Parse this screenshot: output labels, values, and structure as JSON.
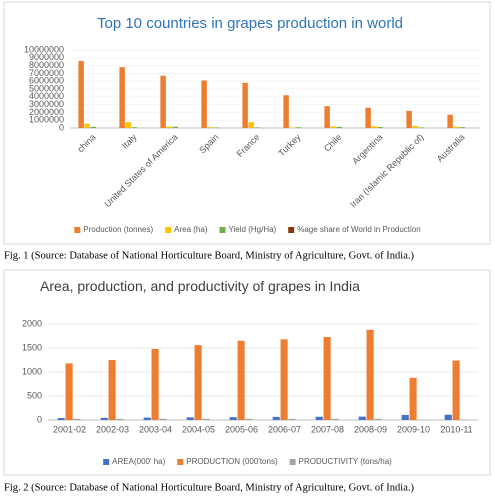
{
  "chart_data": [
    {
      "type": "bar",
      "title": "Top 10 countries  in grapes production in world",
      "caption": "Fig. 1 (Source: Database of National Horticulture Board, Ministry of Agriculture, Govt. of India.)",
      "categories": [
        "china",
        "Italy",
        "United States of America",
        "Spain",
        "France",
        "Turkey",
        "Chile",
        "Argentina",
        "Iran (Islamic Republic of)",
        "Australia"
      ],
      "series": [
        {
          "name": "Production (tonnes)",
          "color": "#ed7d31",
          "values": [
            8600000,
            7800000,
            6700000,
            6100000,
            5800000,
            4200000,
            2800000,
            2600000,
            2200000,
            1700000
          ]
        },
        {
          "name": "Area (ha)",
          "color": "#ffc000",
          "values": [
            550000,
            750000,
            180000,
            100000,
            750000,
            50000,
            200000,
            220000,
            250000,
            150000
          ]
        },
        {
          "name": "Yield (Hg/Ha)",
          "color": "#70ad47",
          "values": [
            150000,
            100000,
            170000,
            70000,
            80000,
            90000,
            150000,
            120000,
            80000,
            110000
          ]
        },
        {
          "name": "%age share of World in Production",
          "color": "#843c0c",
          "values": [
            12.4,
            11.2,
            9.6,
            8.7,
            8.3,
            6.0,
            4.0,
            3.7,
            3.1,
            2.4
          ]
        }
      ],
      "ylim": [
        0,
        10000000
      ],
      "yticks": [
        0,
        1000000,
        2000000,
        3000000,
        4000000,
        5000000,
        6000000,
        7000000,
        8000000,
        9000000,
        10000000
      ],
      "legend": "bottom"
    },
    {
      "type": "bar",
      "title": "Area, production, and productivity of grapes in India",
      "caption": "Fig. 2 (Source: Database of National Horticulture Board, Ministry of Agriculture, Govt. of India.)",
      "categories": [
        "2001-02",
        "2002-03",
        "2003-04",
        "2004-05",
        "2005-06",
        "2006-07",
        "2007-08",
        "2008-09",
        "2009-10",
        "2010-11"
      ],
      "series": [
        {
          "name": "AREA(000' ha)",
          "color": "#4472c4",
          "values": [
            40,
            45,
            50,
            55,
            60,
            65,
            68,
            70,
            105,
            110
          ]
        },
        {
          "name": "PRODUCTION (000'tons)",
          "color": "#ed7d31",
          "values": [
            1180,
            1250,
            1480,
            1560,
            1650,
            1680,
            1730,
            1880,
            880,
            1240
          ]
        },
        {
          "name": "PRODUCTIVITY (tons/ha)",
          "color": "#a5a5a5",
          "values": [
            25,
            24,
            25,
            25,
            25,
            24,
            24,
            26,
            10,
            11
          ]
        }
      ],
      "ylim": [
        0,
        2000
      ],
      "yticks": [
        0,
        500,
        1000,
        1500,
        2000
      ],
      "legend": "bottom"
    }
  ]
}
